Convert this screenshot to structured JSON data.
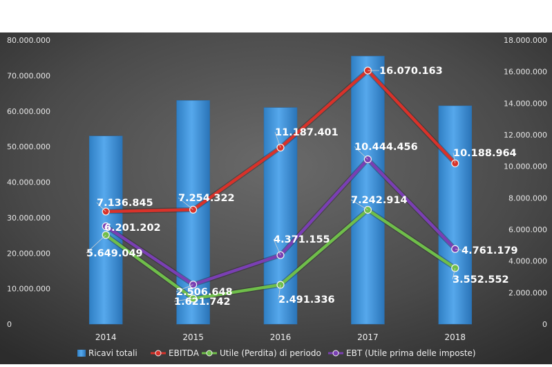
{
  "chart_data": {
    "type": "bar",
    "categories": [
      "2014",
      "2015",
      "2016",
      "2017",
      "2018"
    ],
    "y_left": {
      "ylim": [
        0,
        80000000
      ],
      "ticks": [
        0,
        10000000,
        20000000,
        30000000,
        40000000,
        50000000,
        60000000,
        70000000,
        80000000
      ],
      "tick_labels": [
        "0",
        "10.000.000",
        "20.000.000",
        "30.000.000",
        "40.000.000",
        "50.000.000",
        "60.000.000",
        "70.000.000",
        "80.000.000"
      ]
    },
    "y_right": {
      "ylim": [
        0,
        18000000
      ],
      "ticks": [
        0,
        2000000,
        4000000,
        6000000,
        8000000,
        10000000,
        12000000,
        14000000,
        16000000,
        18000000
      ],
      "tick_labels": [
        "0",
        "2.000.000",
        "4.000.000",
        "6.000.000",
        "8.000.000",
        "10.000.000",
        "12.000.000",
        "14.000.000",
        "16.000.000",
        "18.000.000"
      ]
    },
    "series": [
      {
        "name": "Ricavi totali",
        "kind": "bar",
        "axis": "left",
        "color": "#3d93d9",
        "values": [
          53000000,
          63000000,
          61000000,
          75500000,
          61500000
        ]
      },
      {
        "name": "EBITDA",
        "kind": "line",
        "axis": "right",
        "color": "#d8322a",
        "values": [
          7136845,
          7254322,
          11187401,
          16070163,
          10188964
        ],
        "labels": [
          "7.136.845",
          "7.254.322",
          "11.187.401",
          "16.070.163",
          "10.188.964"
        ]
      },
      {
        "name": "Utile (Perdita) di periodo",
        "kind": "line",
        "axis": "right",
        "color": "#6fbe4a",
        "values": [
          5649049,
          1621742,
          2491336,
          7242914,
          3552552
        ],
        "labels": [
          "5.649.049",
          "1.621.742",
          "2.491.336",
          "7.242.914",
          "3.552.552"
        ]
      },
      {
        "name": "EBT (Utile prima delle imposte)",
        "kind": "line",
        "axis": "right",
        "color": "#7a3fb3",
        "values": [
          6201202,
          2506648,
          4371155,
          10444456,
          4761179
        ],
        "labels": [
          "6.201.202",
          "2.506.648",
          "4.371.155",
          "10.444.456",
          "4.761.179"
        ]
      }
    ]
  }
}
